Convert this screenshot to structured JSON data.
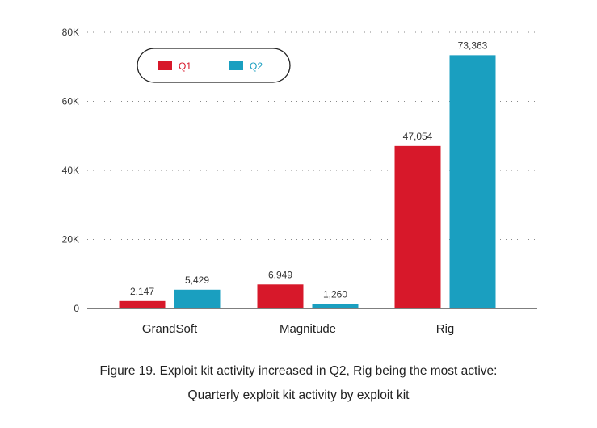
{
  "chart_data": {
    "type": "bar",
    "categories": [
      "GrandSoft",
      "Magnitude",
      "Rig"
    ],
    "series": [
      {
        "name": "Q1",
        "color": "#d7182a",
        "values": [
          2147,
          6949,
          47054
        ],
        "labels": [
          "2,147",
          "6,949",
          "47,054"
        ]
      },
      {
        "name": "Q2",
        "color": "#1a9fc0",
        "values": [
          5429,
          1260,
          73363
        ],
        "labels": [
          "5,429",
          "1,260",
          "73,363"
        ]
      }
    ],
    "ylim": [
      0,
      80000
    ],
    "yticks": [
      0,
      20000,
      40000,
      60000,
      80000
    ],
    "yticklabels": [
      "0",
      "20K",
      "40K",
      "60K",
      "80K"
    ],
    "grid": "dotted",
    "legend": "top-left",
    "title": "",
    "xlabel": "",
    "ylabel": ""
  },
  "caption": {
    "line1": "Figure 19. Exploit kit activity increased in Q2, Rig being the most active:",
    "line2": "Quarterly exploit kit activity by exploit kit"
  }
}
